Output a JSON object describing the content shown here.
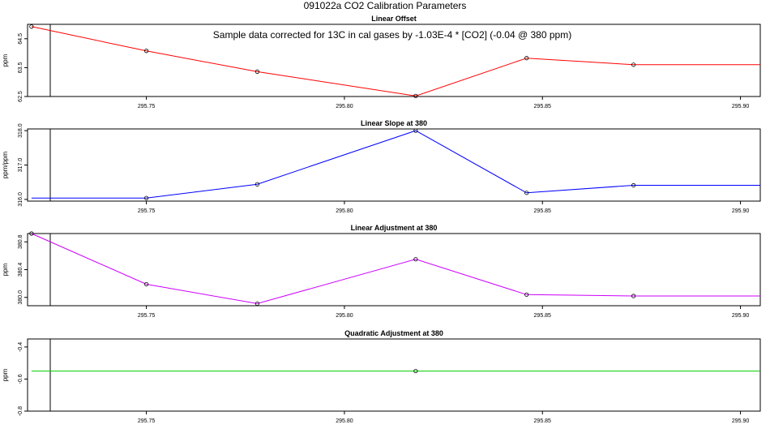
{
  "figure": {
    "title": "091022a   CO2 Calibration Parameters",
    "annotation": "Sample data corrected for 13C in cal gases by -1.03E-4 * [CO2] (-0.04 @ 380 ppm)"
  },
  "chart_data": [
    {
      "type": "line",
      "title": "Linear Offset",
      "xlabel": "",
      "ylabel": "ppm",
      "color": "#ff0000",
      "xlim": [
        295.72,
        295.905
      ],
      "ylim": [
        62.5,
        65.0
      ],
      "xticks": [
        "295.75",
        "295.80",
        "295.85",
        "295.90"
      ],
      "yticks": [
        "62.5",
        "63.5",
        "64.5"
      ],
      "x": [
        295.721,
        295.75,
        295.778,
        295.818,
        295.846,
        295.873,
        295.905
      ],
      "y": [
        64.92,
        64.08,
        63.36,
        62.52,
        63.83,
        63.6,
        63.6
      ],
      "markers": [
        0,
        1,
        2,
        3,
        4,
        5
      ]
    },
    {
      "type": "line",
      "title": "Linear Slope at 380",
      "xlabel": "",
      "ylabel": "ppm/ppm",
      "color": "#0000ff",
      "xlim": [
        295.72,
        295.905
      ],
      "ylim": [
        315.95,
        318.05
      ],
      "xticks": [
        "295.75",
        "295.80",
        "295.85",
        "295.90"
      ],
      "yticks": [
        "316.0",
        "317.0",
        "318.0"
      ],
      "x": [
        295.721,
        295.75,
        295.778,
        295.818,
        295.846,
        295.873,
        295.905
      ],
      "y": [
        316.04,
        316.04,
        316.44,
        318.0,
        316.19,
        316.41,
        316.41
      ],
      "markers": [
        1,
        2,
        3,
        4,
        5
      ]
    },
    {
      "type": "line",
      "title": "Linear Adjustment at 380",
      "xlabel": "",
      "ylabel": "ppm",
      "color": "#cc00ff",
      "xlim": [
        295.72,
        295.905
      ],
      "ylim": [
        379.88,
        380.92
      ],
      "xticks": [
        "295.75",
        "295.80",
        "295.85",
        "295.90"
      ],
      "yticks": [
        "380.0",
        "380.4",
        "380.8"
      ],
      "x": [
        295.721,
        295.75,
        295.778,
        295.818,
        295.846,
        295.873,
        295.905
      ],
      "y": [
        380.92,
        380.19,
        379.91,
        380.55,
        380.04,
        380.02,
        380.02
      ],
      "markers": [
        0,
        1,
        2,
        3,
        4,
        5
      ]
    },
    {
      "type": "line",
      "title": "Quadratic Adjustment at 380",
      "xlabel": "",
      "ylabel": "ppm",
      "color": "#00cc00",
      "xlim": [
        295.72,
        295.905
      ],
      "ylim": [
        -0.8,
        -0.35
      ],
      "xticks": [
        "295.75",
        "295.80",
        "295.85",
        "295.90"
      ],
      "yticks": [
        "-0.8",
        "-0.6",
        "-0.4"
      ],
      "x": [
        295.721,
        295.818,
        295.905
      ],
      "y": [
        -0.55,
        -0.55,
        -0.55
      ],
      "markers": [
        1
      ]
    }
  ]
}
